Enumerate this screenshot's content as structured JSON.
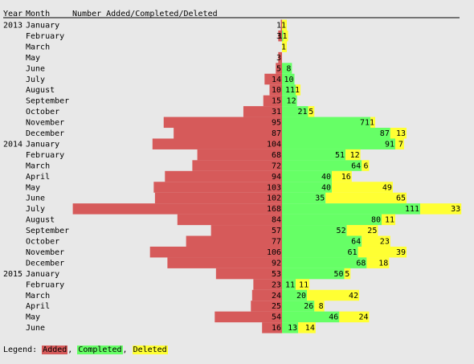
{
  "chart_data": {
    "type": "bar",
    "headers": {
      "year": "Year",
      "month": "Month",
      "series": "Number Added/Completed/Deleted"
    },
    "series": [
      {
        "name": "Added",
        "color": "#d65a5a"
      },
      {
        "name": "Completed",
        "color": "#66ff66"
      },
      {
        "name": "Deleted",
        "color": "#ffff33"
      }
    ],
    "rows": [
      {
        "year": "2013",
        "month": "January",
        "added": 1,
        "completed": 0,
        "deleted": 1
      },
      {
        "year": "",
        "month": "February",
        "added": 3,
        "completed": 1,
        "deleted": 1
      },
      {
        "year": "",
        "month": "March",
        "added": 0,
        "completed": 0,
        "deleted": 1
      },
      {
        "year": "",
        "month": "May",
        "added": 3,
        "completed": 0,
        "deleted": 0
      },
      {
        "year": "",
        "month": "June",
        "added": 5,
        "completed": 8,
        "deleted": 0
      },
      {
        "year": "",
        "month": "July",
        "added": 14,
        "completed": 10,
        "deleted": 0
      },
      {
        "year": "",
        "month": "August",
        "added": 10,
        "completed": 11,
        "deleted": 1
      },
      {
        "year": "",
        "month": "September",
        "added": 15,
        "completed": 12,
        "deleted": 0
      },
      {
        "year": "",
        "month": "October",
        "added": 31,
        "completed": 21,
        "deleted": 5
      },
      {
        "year": "",
        "month": "November",
        "added": 95,
        "completed": 71,
        "deleted": 1
      },
      {
        "year": "",
        "month": "December",
        "added": 87,
        "completed": 87,
        "deleted": 13
      },
      {
        "year": "2014",
        "month": "January",
        "added": 104,
        "completed": 91,
        "deleted": 7
      },
      {
        "year": "",
        "month": "February",
        "added": 68,
        "completed": 51,
        "deleted": 12
      },
      {
        "year": "",
        "month": "March",
        "added": 72,
        "completed": 64,
        "deleted": 6
      },
      {
        "year": "",
        "month": "April",
        "added": 94,
        "completed": 40,
        "deleted": 16
      },
      {
        "year": "",
        "month": "May",
        "added": 103,
        "completed": 40,
        "deleted": 49
      },
      {
        "year": "",
        "month": "June",
        "added": 102,
        "completed": 35,
        "deleted": 65
      },
      {
        "year": "",
        "month": "July",
        "added": 168,
        "completed": 111,
        "deleted": 33
      },
      {
        "year": "",
        "month": "August",
        "added": 84,
        "completed": 80,
        "deleted": 11
      },
      {
        "year": "",
        "month": "September",
        "added": 57,
        "completed": 52,
        "deleted": 25
      },
      {
        "year": "",
        "month": "October",
        "added": 77,
        "completed": 64,
        "deleted": 23
      },
      {
        "year": "",
        "month": "November",
        "added": 106,
        "completed": 61,
        "deleted": 39
      },
      {
        "year": "",
        "month": "December",
        "added": 92,
        "completed": 68,
        "deleted": 18
      },
      {
        "year": "2015",
        "month": "January",
        "added": 53,
        "completed": 50,
        "deleted": 5
      },
      {
        "year": "",
        "month": "February",
        "added": 23,
        "completed": 11,
        "deleted": 11
      },
      {
        "year": "",
        "month": "March",
        "added": 24,
        "completed": 20,
        "deleted": 42
      },
      {
        "year": "",
        "month": "April",
        "added": 25,
        "completed": 26,
        "deleted": 8
      },
      {
        "year": "",
        "month": "May",
        "added": 54,
        "completed": 46,
        "deleted": 24
      },
      {
        "year": "",
        "month": "June",
        "added": 16,
        "completed": 13,
        "deleted": 14
      }
    ]
  },
  "legend": {
    "prefix": "Legend: ",
    "added": "Added",
    "sep1": ", ",
    "completed": "Completed",
    "sep2": ", ",
    "deleted": "Deleted"
  }
}
